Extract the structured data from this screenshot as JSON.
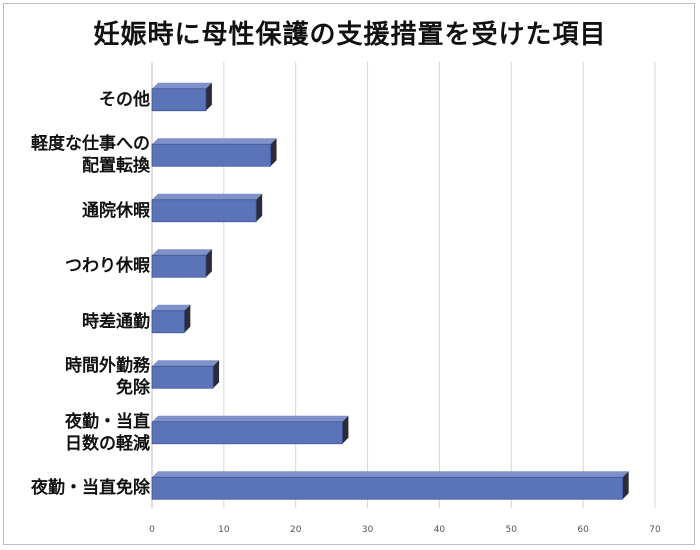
{
  "chart_data": {
    "type": "bar",
    "orientation": "horizontal",
    "title": "妊娠時に母性保護の支援措置を受けた項目",
    "categories": [
      "その他",
      "軽度な仕事への\n配置転換",
      "通院休暇",
      "つわり休暇",
      "時差通勤",
      "時間外勤務\n免除",
      "夜勤・当直\n日数の軽減",
      "夜勤・当直免除"
    ],
    "values": [
      7.5,
      16.5,
      14.5,
      7.5,
      4.5,
      8.5,
      26.5,
      65.5
    ],
    "xlim": [
      0,
      70
    ],
    "xticks": [
      "0",
      "10",
      "20",
      "30",
      "40",
      "50",
      "60",
      "70"
    ],
    "xlabel": "",
    "ylabel": "",
    "grid": "vertical",
    "bar_color": "#5b73b8",
    "bar_side_color": "#2b2b3a",
    "grid_color": "#e3cfc9"
  }
}
